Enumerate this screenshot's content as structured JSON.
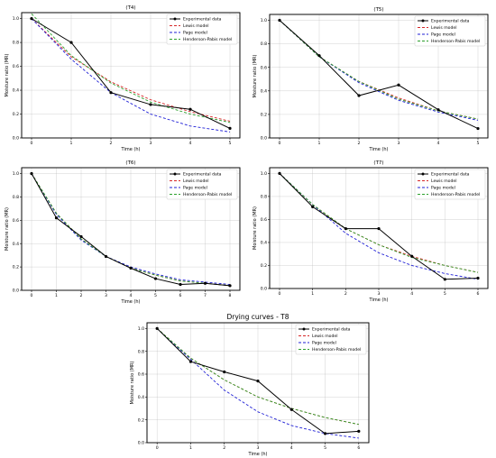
{
  "colors": {
    "experimental": "#000000",
    "lewis": "#d62728",
    "page": "#1f1fd6",
    "henderson": "#2ca02c"
  },
  "chart_data": [
    {
      "type": "line",
      "title": "(T4)",
      "xlabel": "Time (h)",
      "ylabel": "Moisture ratio (MR)",
      "xlim": [
        -0.25,
        5.25
      ],
      "ylim": [
        0,
        1.05
      ],
      "xticks": [
        0,
        1,
        2,
        3,
        4,
        5
      ],
      "yticks": [
        0.0,
        0.2,
        0.4,
        0.6,
        0.8,
        1.0
      ],
      "grid": true,
      "legend": "top-right",
      "x": [
        0,
        1,
        2,
        3,
        4,
        5
      ],
      "series": [
        {
          "name": "Experimental data",
          "values": [
            1.0,
            0.8,
            0.38,
            0.28,
            0.24,
            0.08
          ]
        },
        {
          "name": "Lewis model",
          "values": [
            1.0,
            0.68,
            0.47,
            0.32,
            0.22,
            0.14
          ]
        },
        {
          "name": "Page model",
          "values": [
            1.0,
            0.66,
            0.38,
            0.2,
            0.1,
            0.05
          ]
        },
        {
          "name": "Henderson-Pabis model",
          "values": [
            1.04,
            0.69,
            0.46,
            0.3,
            0.2,
            0.13
          ]
        }
      ]
    },
    {
      "type": "line",
      "title": "(T5)",
      "xlabel": "Time (h)",
      "ylabel": "Moisture ratio (MR)",
      "xlim": [
        -0.25,
        5.25
      ],
      "ylim": [
        0,
        1.05
      ],
      "xticks": [
        0,
        1,
        2,
        3,
        4,
        5
      ],
      "yticks": [
        0.0,
        0.2,
        0.4,
        0.6,
        0.8,
        1.0
      ],
      "grid": true,
      "legend": "top-right",
      "x": [
        0,
        1,
        2,
        3,
        4,
        5
      ],
      "series": [
        {
          "name": "Experimental data",
          "values": [
            1.0,
            0.7,
            0.36,
            0.45,
            0.24,
            0.08
          ]
        },
        {
          "name": "Lewis model",
          "values": [
            1.0,
            0.69,
            0.48,
            0.34,
            0.23,
            0.16
          ]
        },
        {
          "name": "Page model",
          "values": [
            1.0,
            0.69,
            0.47,
            0.32,
            0.22,
            0.15
          ]
        },
        {
          "name": "Henderson-Pabis model",
          "values": [
            1.0,
            0.69,
            0.48,
            0.33,
            0.23,
            0.16
          ]
        }
      ]
    },
    {
      "type": "line",
      "title": "(T6)",
      "xlabel": "Time (h)",
      "ylabel": "Moisture ratio (MR)",
      "xlim": [
        -0.4,
        8.4
      ],
      "ylim": [
        0,
        1.05
      ],
      "xticks": [
        0,
        1,
        2,
        3,
        4,
        5,
        6,
        7,
        8
      ],
      "yticks": [
        0.0,
        0.2,
        0.4,
        0.6,
        0.8,
        1.0
      ],
      "grid": true,
      "legend": "top-right",
      "x": [
        0,
        1,
        2,
        3,
        4,
        5,
        6,
        7,
        8
      ],
      "series": [
        {
          "name": "Experimental data",
          "values": [
            1.0,
            0.62,
            0.46,
            0.29,
            0.19,
            0.1,
            0.05,
            0.06,
            0.04
          ]
        },
        {
          "name": "Lewis model",
          "values": [
            1.0,
            0.66,
            0.44,
            0.29,
            0.19,
            0.13,
            0.08,
            0.06,
            0.04
          ]
        },
        {
          "name": "Page model",
          "values": [
            1.0,
            0.65,
            0.43,
            0.29,
            0.2,
            0.14,
            0.09,
            0.07,
            0.05
          ]
        },
        {
          "name": "Henderson-Pabis model",
          "values": [
            1.0,
            0.66,
            0.44,
            0.29,
            0.19,
            0.13,
            0.08,
            0.06,
            0.04
          ]
        }
      ]
    },
    {
      "type": "line",
      "title": "(T7)",
      "xlabel": "Time (h)",
      "ylabel": "Moisture ratio (MR)",
      "xlim": [
        -0.3,
        6.3
      ],
      "ylim": [
        0,
        1.05
      ],
      "xticks": [
        0,
        1,
        2,
        3,
        4,
        5,
        6
      ],
      "yticks": [
        0.0,
        0.2,
        0.4,
        0.6,
        0.8,
        1.0
      ],
      "grid": true,
      "legend": "top-right",
      "x": [
        0,
        1,
        2,
        3,
        4,
        5,
        6
      ],
      "series": [
        {
          "name": "Experimental data",
          "values": [
            1.0,
            0.71,
            0.52,
            0.52,
            0.28,
            0.08,
            0.09
          ]
        },
        {
          "name": "Lewis model",
          "values": [
            1.0,
            0.73,
            0.52,
            0.38,
            0.28,
            0.2,
            0.14
          ]
        },
        {
          "name": "Page model",
          "values": [
            1.0,
            0.73,
            0.48,
            0.31,
            0.2,
            0.13,
            0.08
          ]
        },
        {
          "name": "Henderson-Pabis model",
          "values": [
            1.0,
            0.73,
            0.52,
            0.38,
            0.27,
            0.2,
            0.14
          ]
        }
      ]
    },
    {
      "type": "line",
      "title": "Drying curves - T8",
      "xlabel": "Time (h)",
      "ylabel": "Moisture ratio (MR)",
      "xlim": [
        -0.3,
        6.3
      ],
      "ylim": [
        0,
        1.05
      ],
      "xticks": [
        0,
        1,
        2,
        3,
        4,
        5,
        6
      ],
      "yticks": [
        0.0,
        0.2,
        0.4,
        0.6,
        0.8,
        1.0
      ],
      "grid": true,
      "legend": "top-right",
      "x": [
        0,
        1,
        2,
        3,
        4,
        5,
        6
      ],
      "series": [
        {
          "name": "Experimental data",
          "values": [
            1.0,
            0.71,
            0.62,
            0.54,
            0.29,
            0.08,
            0.1
          ]
        },
        {
          "name": "Lewis model",
          "values": [
            1.0,
            0.74,
            0.55,
            0.4,
            0.3,
            0.22,
            0.16
          ]
        },
        {
          "name": "Page model",
          "values": [
            1.0,
            0.73,
            0.46,
            0.27,
            0.15,
            0.08,
            0.04
          ]
        },
        {
          "name": "Henderson-Pabis model",
          "values": [
            1.0,
            0.74,
            0.55,
            0.4,
            0.3,
            0.22,
            0.16
          ]
        }
      ]
    }
  ]
}
